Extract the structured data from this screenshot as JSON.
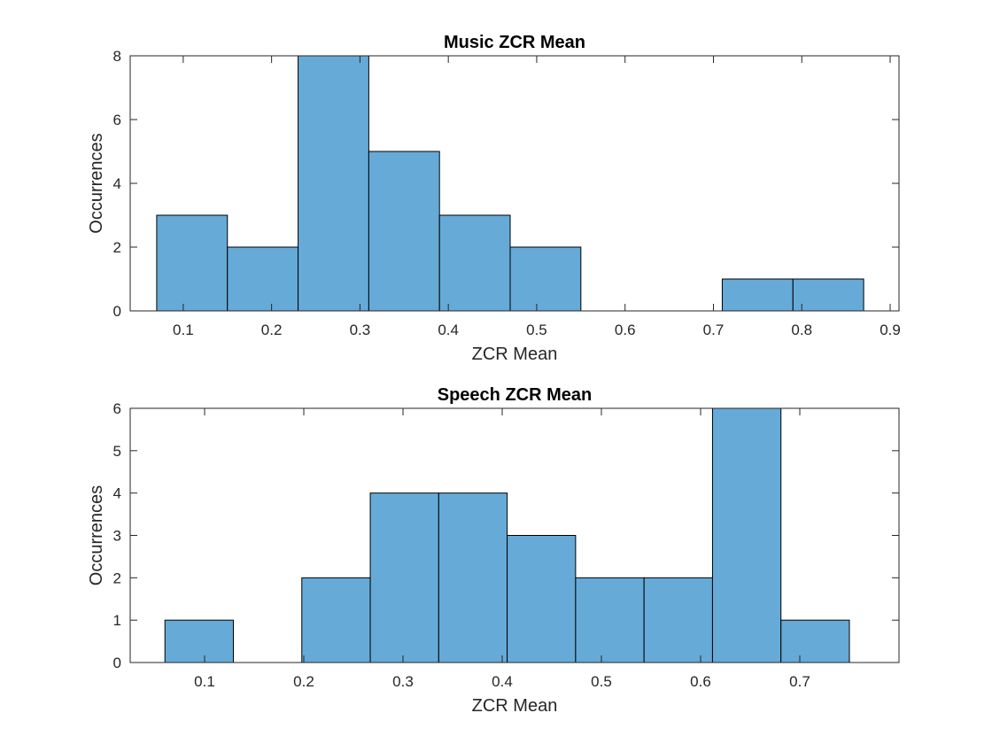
{
  "chart_data": [
    {
      "type": "bar",
      "title": "Music ZCR Mean",
      "xlabel": "ZCR Mean",
      "ylabel": "Occurrences",
      "xlim": [
        0.04,
        0.91
      ],
      "ylim": [
        0,
        8
      ],
      "xticks": [
        "0.1",
        "0.2",
        "0.3",
        "0.4",
        "0.5",
        "0.6",
        "0.7",
        "0.8",
        "0.9"
      ],
      "yticks": [
        "0",
        "2",
        "4",
        "6",
        "8"
      ],
      "bin_edges": [
        0.07,
        0.15,
        0.23,
        0.31,
        0.39,
        0.47,
        0.55,
        0.63,
        0.71,
        0.79,
        0.87
      ],
      "values": [
        3,
        2,
        8,
        5,
        3,
        2,
        0,
        0,
        1,
        1
      ],
      "bar_color": "#66aad8"
    },
    {
      "type": "bar",
      "title": "Speech ZCR Mean",
      "xlabel": "ZCR Mean",
      "ylabel": "Occurrences",
      "xlim": [
        0.025,
        0.8
      ],
      "ylim": [
        0,
        6
      ],
      "xticks": [
        "0.1",
        "0.2",
        "0.3",
        "0.4",
        "0.5",
        "0.6",
        "0.7"
      ],
      "yticks": [
        "0",
        "1",
        "2",
        "3",
        "4",
        "5",
        "6"
      ],
      "bin_edges": [
        0.06,
        0.129,
        0.198,
        0.267,
        0.336,
        0.405,
        0.474,
        0.543,
        0.612,
        0.681,
        0.75
      ],
      "values": [
        1,
        0,
        2,
        4,
        4,
        3,
        2,
        2,
        6,
        1
      ],
      "bar_color": "#66aad8"
    }
  ]
}
